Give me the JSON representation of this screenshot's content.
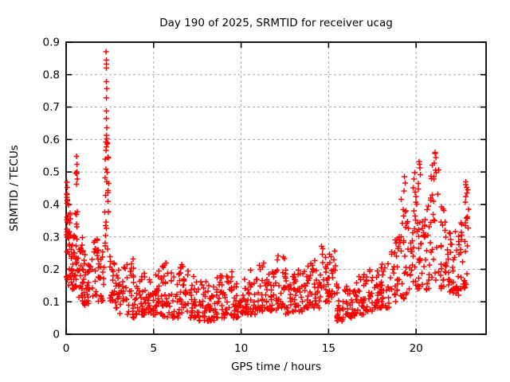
{
  "chart_data": {
    "type": "scatter",
    "title": "Day 190 of 2025, SRMTID for receiver ucag",
    "xlabel": "GPS time / hours",
    "ylabel": "SRMTID / TECUs",
    "xlim": [
      0,
      24
    ],
    "ylim": [
      0,
      0.9
    ],
    "xticks": {
      "values": [
        0,
        5,
        10,
        15,
        20
      ],
      "labels": [
        "0",
        "5",
        "10",
        "15",
        "20"
      ]
    },
    "yticks": {
      "values": [
        0,
        0.1,
        0.2,
        0.3,
        0.4,
        0.5,
        0.6,
        0.7,
        0.8,
        0.9
      ],
      "labels": [
        "0",
        "0.1",
        "0.2",
        "0.3",
        "0.4",
        "0.5",
        "0.6",
        "0.7",
        "0.8",
        "0.9"
      ]
    },
    "grid": true,
    "legend": "none",
    "background_color": "#ffffff",
    "grid_color": "#aaaaaa",
    "axis_color": "#000000",
    "marker": {
      "shape": "plus",
      "color": "#ff0000",
      "size": 7
    },
    "series_name": "SRMTID",
    "seed": 42,
    "scatter_segments": [
      [
        0.02,
        0.12,
        22,
        0.16,
        0.47,
        1.0
      ],
      [
        0.12,
        0.3,
        20,
        0.15,
        0.4,
        1.3
      ],
      [
        0.3,
        0.5,
        20,
        0.13,
        0.33,
        1.4
      ],
      [
        0.5,
        0.7,
        22,
        0.14,
        0.5,
        1.2
      ],
      [
        0.7,
        1.0,
        24,
        0.1,
        0.3,
        1.5
      ],
      [
        1.0,
        1.5,
        30,
        0.09,
        0.26,
        1.5
      ],
      [
        1.5,
        2.0,
        30,
        0.09,
        0.3,
        1.5
      ],
      [
        2.0,
        2.2,
        10,
        0.1,
        0.28,
        1.4
      ],
      [
        2.2,
        2.45,
        26,
        0.25,
        0.62,
        1.0
      ],
      [
        2.45,
        2.7,
        14,
        0.1,
        0.3,
        1.4
      ],
      [
        2.7,
        3.0,
        16,
        0.08,
        0.22,
        1.5
      ],
      [
        3.0,
        3.5,
        26,
        0.06,
        0.22,
        1.6
      ],
      [
        3.5,
        4.0,
        26,
        0.05,
        0.24,
        1.6
      ],
      [
        4.0,
        4.5,
        26,
        0.06,
        0.2,
        1.6
      ],
      [
        4.5,
        5.0,
        26,
        0.06,
        0.19,
        1.6
      ],
      [
        5.0,
        5.5,
        26,
        0.06,
        0.2,
        1.6
      ],
      [
        5.5,
        6.0,
        26,
        0.05,
        0.22,
        1.6
      ],
      [
        6.0,
        6.5,
        26,
        0.05,
        0.2,
        1.6
      ],
      [
        6.5,
        7.0,
        26,
        0.05,
        0.22,
        1.6
      ],
      [
        7.0,
        7.5,
        26,
        0.05,
        0.18,
        1.6
      ],
      [
        7.5,
        8.0,
        26,
        0.04,
        0.17,
        1.6
      ],
      [
        8.0,
        8.5,
        26,
        0.04,
        0.15,
        1.6
      ],
      [
        8.5,
        9.0,
        26,
        0.05,
        0.18,
        1.6
      ],
      [
        9.0,
        9.5,
        26,
        0.05,
        0.2,
        1.6
      ],
      [
        9.5,
        10.0,
        26,
        0.05,
        0.16,
        1.6
      ],
      [
        10.0,
        10.5,
        26,
        0.06,
        0.17,
        1.6
      ],
      [
        10.5,
        11.0,
        26,
        0.06,
        0.2,
        1.6
      ],
      [
        11.0,
        11.5,
        26,
        0.07,
        0.22,
        1.6
      ],
      [
        11.5,
        12.0,
        26,
        0.07,
        0.2,
        1.6
      ],
      [
        12.0,
        12.5,
        26,
        0.08,
        0.25,
        1.6
      ],
      [
        12.5,
        13.0,
        26,
        0.06,
        0.2,
        1.6
      ],
      [
        13.0,
        13.5,
        26,
        0.07,
        0.2,
        1.6
      ],
      [
        13.5,
        14.0,
        26,
        0.08,
        0.22,
        1.5
      ],
      [
        14.0,
        14.5,
        26,
        0.08,
        0.24,
        1.5
      ],
      [
        14.5,
        15.0,
        26,
        0.1,
        0.28,
        1.4
      ],
      [
        15.0,
        15.4,
        20,
        0.1,
        0.27,
        1.4
      ],
      [
        15.4,
        16.0,
        28,
        0.04,
        0.16,
        1.6
      ],
      [
        16.0,
        16.5,
        26,
        0.05,
        0.15,
        1.6
      ],
      [
        16.5,
        17.0,
        26,
        0.06,
        0.18,
        1.6
      ],
      [
        17.0,
        17.5,
        26,
        0.07,
        0.2,
        1.6
      ],
      [
        17.5,
        18.0,
        26,
        0.08,
        0.2,
        1.5
      ],
      [
        18.0,
        18.5,
        26,
        0.08,
        0.22,
        1.5
      ],
      [
        18.5,
        19.0,
        26,
        0.1,
        0.3,
        1.4
      ],
      [
        19.0,
        19.4,
        22,
        0.1,
        0.42,
        1.3
      ],
      [
        19.4,
        19.8,
        22,
        0.12,
        0.4,
        1.3
      ],
      [
        19.8,
        20.1,
        20,
        0.13,
        0.46,
        1.2
      ],
      [
        20.1,
        20.4,
        20,
        0.14,
        0.53,
        1.2
      ],
      [
        20.4,
        20.8,
        22,
        0.13,
        0.4,
        1.3
      ],
      [
        20.8,
        21.3,
        26,
        0.15,
        0.56,
        1.1
      ],
      [
        21.3,
        21.7,
        22,
        0.14,
        0.42,
        1.3
      ],
      [
        21.7,
        22.1,
        22,
        0.13,
        0.35,
        1.4
      ],
      [
        22.1,
        22.5,
        22,
        0.12,
        0.32,
        1.4
      ],
      [
        22.5,
        22.8,
        18,
        0.13,
        0.35,
        1.3
      ],
      [
        22.8,
        23.0,
        16,
        0.15,
        0.47,
        1.0
      ]
    ],
    "peak_points": [
      [
        2.28,
        0.87
      ],
      [
        2.3,
        0.845
      ],
      [
        2.31,
        0.833
      ],
      [
        2.29,
        0.82
      ],
      [
        2.3,
        0.778
      ],
      [
        2.33,
        0.757
      ],
      [
        2.3,
        0.728
      ],
      [
        2.31,
        0.688
      ],
      [
        2.29,
        0.665
      ],
      [
        2.32,
        0.636
      ],
      [
        2.3,
        0.613
      ],
      [
        2.28,
        0.592
      ],
      [
        2.31,
        0.578
      ],
      [
        0.6,
        0.548
      ],
      [
        0.62,
        0.523
      ],
      [
        0.61,
        0.5
      ],
      [
        0.63,
        0.478
      ],
      [
        0.6,
        0.462
      ],
      [
        0.05,
        0.468
      ],
      [
        0.07,
        0.452
      ],
      [
        0.04,
        0.43
      ],
      [
        0.06,
        0.415
      ],
      [
        19.34,
        0.485
      ],
      [
        19.37,
        0.466
      ],
      [
        19.3,
        0.442
      ],
      [
        19.92,
        0.498
      ],
      [
        19.88,
        0.478
      ],
      [
        20.18,
        0.532
      ],
      [
        20.22,
        0.512
      ],
      [
        20.25,
        0.492
      ],
      [
        21.08,
        0.56
      ],
      [
        21.12,
        0.545
      ],
      [
        21.05,
        0.527
      ],
      [
        21.1,
        0.505
      ],
      [
        22.85,
        0.47
      ],
      [
        22.88,
        0.452
      ],
      [
        22.9,
        0.435
      ]
    ]
  }
}
